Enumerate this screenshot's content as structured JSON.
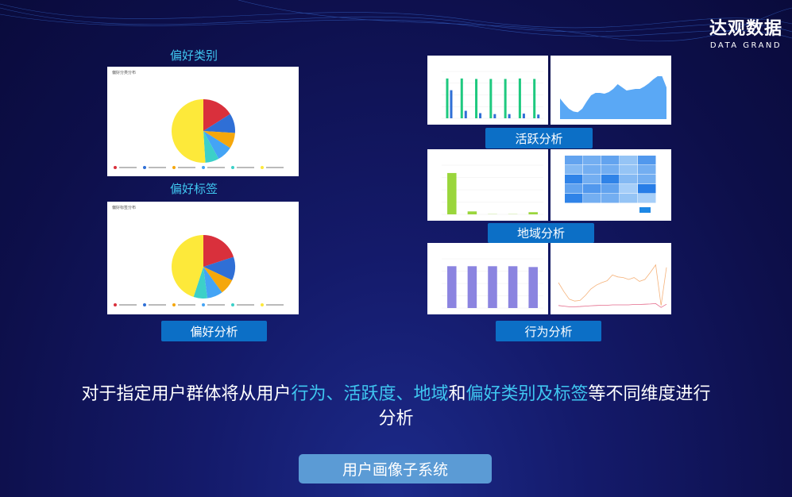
{
  "logo": {
    "cn": "达观数据",
    "en": "DATA GRAND"
  },
  "preference": {
    "category_label": "偏好类别",
    "tag_label": "偏好标签",
    "button": "偏好分析",
    "category_chart": {
      "title": "偏好分类分布",
      "type": "pie",
      "slices": [
        0.16,
        0.1,
        0.08,
        0.08,
        0.07,
        0.51
      ]
    },
    "tag_chart": {
      "title": "偏好标签分布",
      "type": "pie",
      "slices": [
        0.2,
        0.12,
        0.08,
        0.08,
        0.07,
        0.45
      ]
    },
    "pie_colors": [
      "#d9303c",
      "#2f6fd6",
      "#f5a70c",
      "#44a4f5",
      "#3cd0c8",
      "#fde93a"
    ]
  },
  "activity": {
    "button": "活跃分析",
    "bar_chart": {
      "type": "bar",
      "ylim": [
        0,
        100000
      ],
      "series": [
        {
          "color": "#1ec97f",
          "values": [
            85000,
            85000,
            84000,
            84000,
            84000,
            85000,
            84000
          ]
        },
        {
          "color": "#2f6fd6",
          "values": [
            60000,
            16000,
            11000,
            9000,
            9000,
            10000,
            8000
          ]
        }
      ]
    },
    "area_chart": {
      "type": "area",
      "ylim": [
        0,
        30000
      ],
      "color": "#5aa8f5",
      "values": [
        13000,
        9500,
        6500,
        4800,
        4300,
        6500,
        11000,
        15000,
        16500,
        16500,
        16000,
        17000,
        19000,
        22000,
        20000,
        18000,
        18500,
        19000,
        19000,
        20500,
        22500,
        25000,
        27000,
        27000,
        20000
      ]
    }
  },
  "region": {
    "button": "地域分析",
    "bar_chart": {
      "type": "bar",
      "ylim": [
        0,
        500000
      ],
      "color": "#9ad63c",
      "values": [
        420000,
        30000,
        2000,
        2000,
        22000
      ]
    },
    "heatmap": {
      "type": "heatmap",
      "values": [
        [
          0.6,
          0.5,
          0.6,
          0.3,
          0.7
        ],
        [
          0.4,
          0.5,
          0.5,
          0.3,
          0.5
        ],
        [
          0.9,
          0.5,
          0.9,
          0.4,
          0.5
        ],
        [
          0.6,
          0.7,
          0.6,
          0.2,
          0.95
        ],
        [
          0.9,
          0.5,
          0.5,
          0.3,
          0.2
        ]
      ]
    }
  },
  "behavior": {
    "button": "行为分析",
    "bar_chart": {
      "type": "bar",
      "ylim": [
        0,
        30000
      ],
      "color": "#8b84e0",
      "values": [
        25500,
        25500,
        25500,
        25500,
        25000
      ]
    },
    "line_chart": {
      "type": "line",
      "ylim": [
        0,
        400000
      ],
      "series": [
        {
          "color": "#f5b27a",
          "values": [
            200000,
            130000,
            70000,
            55000,
            60000,
            100000,
            150000,
            180000,
            200000,
            215000,
            260000,
            245000,
            240000,
            225000,
            240000,
            210000,
            225000,
            280000,
            340000,
            20000,
            320000
          ]
        },
        {
          "color": "#e46a8a",
          "values": [
            20000,
            15000,
            10000,
            10000,
            12000,
            15000,
            18000,
            20000,
            22000,
            22000,
            25000,
            25000,
            25000,
            25000,
            28000,
            28000,
            30000,
            32000,
            35000,
            5000,
            30000
          ]
        }
      ]
    }
  },
  "description": {
    "p1": "对于指定用户群体将从用户",
    "h1": "行为、活跃度、地域",
    "p2": "和",
    "h2": "偏好类别及标签",
    "p3": "等不同维度进行分析"
  },
  "main_button": "用户画像子系统"
}
